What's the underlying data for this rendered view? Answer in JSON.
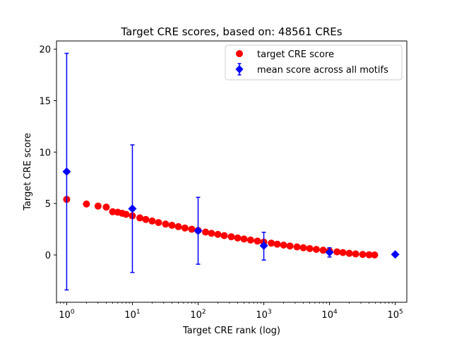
{
  "chart_data": {
    "type": "scatter",
    "title": "Target CRE scores, based on: 48561 CREs",
    "xlabel": "Target CRE rank (log)",
    "ylabel": "Target CRE score",
    "xscale": "log",
    "xlim": [
      0.7,
      150000
    ],
    "ylim": [
      -4.6,
      20.8
    ],
    "xticks": [
      {
        "value": 1,
        "base": "10",
        "exp": "0"
      },
      {
        "value": 10,
        "base": "10",
        "exp": "1"
      },
      {
        "value": 100,
        "base": "10",
        "exp": "2"
      },
      {
        "value": 1000,
        "base": "10",
        "exp": "3"
      },
      {
        "value": 10000,
        "base": "10",
        "exp": "4"
      },
      {
        "value": 100000,
        "base": "10",
        "exp": "5"
      }
    ],
    "yticks": [
      {
        "value": 0,
        "label": "0"
      },
      {
        "value": 5,
        "label": "5"
      },
      {
        "value": 10,
        "label": "10"
      },
      {
        "value": 15,
        "label": "15"
      },
      {
        "value": 20,
        "label": "20"
      }
    ],
    "grid": false,
    "legend_position": "top-right",
    "series": [
      {
        "name": "target CRE score",
        "marker": "circle",
        "color": "#ff0000",
        "points": [
          [
            1,
            5.4
          ],
          [
            2,
            4.95
          ],
          [
            3,
            4.75
          ],
          [
            4,
            4.65
          ],
          [
            5,
            4.2
          ],
          [
            6,
            4.15
          ],
          [
            7,
            4.05
          ],
          [
            8,
            3.95
          ],
          [
            10,
            3.8
          ],
          [
            13,
            3.6
          ],
          [
            16,
            3.45
          ],
          [
            20,
            3.3
          ],
          [
            25,
            3.15
          ],
          [
            32,
            3.0
          ],
          [
            40,
            2.88
          ],
          [
            50,
            2.75
          ],
          [
            63,
            2.62
          ],
          [
            80,
            2.5
          ],
          [
            100,
            2.38
          ],
          [
            130,
            2.22
          ],
          [
            160,
            2.1
          ],
          [
            200,
            2.0
          ],
          [
            250,
            1.88
          ],
          [
            320,
            1.77
          ],
          [
            400,
            1.65
          ],
          [
            500,
            1.55
          ],
          [
            630,
            1.45
          ],
          [
            800,
            1.35
          ],
          [
            1000,
            1.25
          ],
          [
            1300,
            1.15
          ],
          [
            1600,
            1.05
          ],
          [
            2000,
            0.96
          ],
          [
            2500,
            0.87
          ],
          [
            3200,
            0.78
          ],
          [
            4000,
            0.7
          ],
          [
            5000,
            0.62
          ],
          [
            6300,
            0.54
          ],
          [
            8000,
            0.46
          ],
          [
            10000,
            0.38
          ],
          [
            13000,
            0.3
          ],
          [
            16000,
            0.23
          ],
          [
            20000,
            0.16
          ],
          [
            25000,
            0.1
          ],
          [
            32000,
            0.05
          ],
          [
            40000,
            0.02
          ],
          [
            48561,
            0.0
          ]
        ]
      },
      {
        "name": "mean score across all motifs",
        "marker": "diamond",
        "color": "#0000ff",
        "points": [
          {
            "x": 1,
            "y": 8.1,
            "low": -3.4,
            "high": 19.6
          },
          {
            "x": 10,
            "y": 4.5,
            "low": -1.7,
            "high": 10.7
          },
          {
            "x": 100,
            "y": 2.35,
            "low": -0.9,
            "high": 5.6
          },
          {
            "x": 1000,
            "y": 0.9,
            "low": -0.5,
            "high": 2.2
          },
          {
            "x": 10000,
            "y": 0.25,
            "low": -0.2,
            "high": 0.7
          },
          {
            "x": 100000,
            "y": 0.05,
            "low": 0.05,
            "high": 0.05
          }
        ]
      }
    ]
  }
}
